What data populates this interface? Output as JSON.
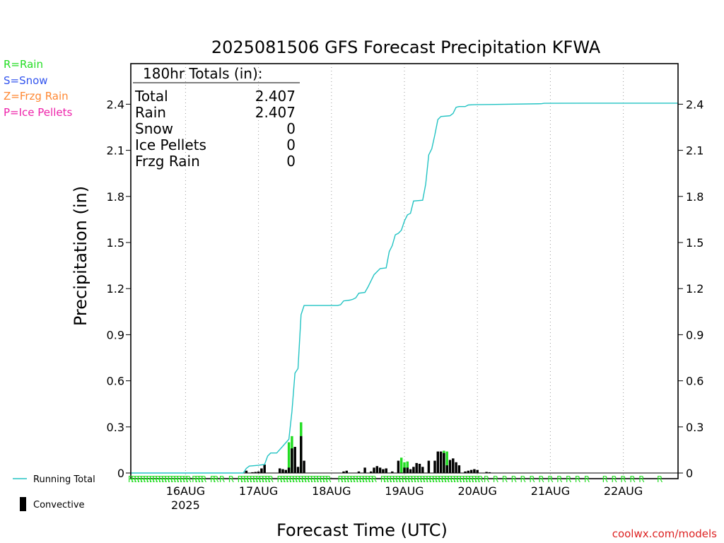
{
  "title": "2025081506 GFS Forecast Precipitation KFWA",
  "ylabel": "Precipitation (in)",
  "xlabel": "Forecast Time (UTC)",
  "watermark": "coolwx.com/models",
  "ptype_legend": [
    {
      "label": "R=Rain",
      "color": "#22dd22"
    },
    {
      "label": "S=Snow",
      "color": "#3355ee"
    },
    {
      "label": "Z=Frzg Rain",
      "color": "#ff8833"
    },
    {
      "label": "P=Ice Pellets",
      "color": "#ee22aa"
    }
  ],
  "series_legend": {
    "running_total": {
      "label": "Running Total",
      "color": "#22c3c3"
    },
    "convective": {
      "label": "Convective",
      "color": "#000000"
    }
  },
  "totals": {
    "header": "180hr Totals (in):",
    "rows": [
      {
        "label": "Total",
        "value": "2.407"
      },
      {
        "label": "Rain",
        "value": "2.407"
      },
      {
        "label": "Snow",
        "value": "0"
      },
      {
        "label": "Ice Pellets",
        "value": "0"
      },
      {
        "label": "Frzg Rain",
        "value": "0"
      }
    ]
  },
  "chart_data": {
    "type": "bar",
    "title": "2025081506 GFS Forecast Precipitation KFWA",
    "xlabel": "Forecast Time (UTC)",
    "ylabel": "Precipitation (in)",
    "x_units": "forecast hour from 2025-08-15 06Z",
    "xlim": [
      0,
      180
    ],
    "ylim": [
      0,
      2.6
    ],
    "yticks": [
      0,
      0.3,
      0.6,
      0.9,
      1.2,
      1.5,
      1.8,
      2.1,
      2.4
    ],
    "ytick_labels": [
      "0",
      "0.3",
      "0.6",
      "0.9",
      "1.2",
      "1.5",
      "1.8",
      "2.1",
      "2.4"
    ],
    "xticks": [
      {
        "x": 18,
        "label": "16AUG",
        "sublabel": "2025"
      },
      {
        "x": 42,
        "label": "17AUG"
      },
      {
        "x": 66,
        "label": "18AUG"
      },
      {
        "x": 90,
        "label": "19AUG"
      },
      {
        "x": 114,
        "label": "20AUG"
      },
      {
        "x": 138,
        "label": "21AUG"
      },
      {
        "x": 162,
        "label": "22AUG"
      }
    ],
    "grid": "vertical dotted at day boundaries",
    "series": [
      {
        "name": "Running Total",
        "kind": "line",
        "color": "#22c3c3",
        "points": [
          [
            0,
            0
          ],
          [
            37,
            0
          ],
          [
            38,
            0.03
          ],
          [
            39,
            0.045
          ],
          [
            42,
            0.05
          ],
          [
            44,
            0.055
          ],
          [
            45,
            0.11
          ],
          [
            46,
            0.13
          ],
          [
            48,
            0.13
          ],
          [
            50,
            0.175
          ],
          [
            52,
            0.22
          ],
          [
            53,
            0.4
          ],
          [
            54,
            0.65
          ],
          [
            55,
            0.68
          ],
          [
            56,
            1.03
          ],
          [
            57,
            1.09
          ],
          [
            68,
            1.09
          ],
          [
            69,
            1.095
          ],
          [
            70,
            1.12
          ],
          [
            72,
            1.125
          ],
          [
            73,
            1.13
          ],
          [
            74,
            1.14
          ],
          [
            75,
            1.17
          ],
          [
            77,
            1.175
          ],
          [
            78,
            1.21
          ],
          [
            79,
            1.25
          ],
          [
            80,
            1.29
          ],
          [
            81,
            1.31
          ],
          [
            82,
            1.33
          ],
          [
            84,
            1.335
          ],
          [
            85,
            1.44
          ],
          [
            86,
            1.48
          ],
          [
            87,
            1.55
          ],
          [
            88,
            1.56
          ],
          [
            89,
            1.58
          ],
          [
            90,
            1.64
          ],
          [
            91,
            1.68
          ],
          [
            92,
            1.69
          ],
          [
            93,
            1.77
          ],
          [
            96,
            1.775
          ],
          [
            97,
            1.88
          ],
          [
            98,
            2.07
          ],
          [
            99,
            2.11
          ],
          [
            100,
            2.2
          ],
          [
            101,
            2.3
          ],
          [
            102,
            2.32
          ],
          [
            105,
            2.325
          ],
          [
            106,
            2.34
          ],
          [
            107,
            2.38
          ],
          [
            108,
            2.385
          ],
          [
            110,
            2.385
          ],
          [
            111,
            2.395
          ],
          [
            113,
            2.397
          ],
          [
            118,
            2.398
          ],
          [
            135,
            2.403
          ],
          [
            136,
            2.406
          ],
          [
            150,
            2.407
          ],
          [
            180,
            2.407
          ]
        ]
      },
      {
        "name": "Rain",
        "kind": "bar",
        "color": "#22dd22",
        "points": [
          [
            52,
            0.2
          ],
          [
            53,
            0.24
          ],
          [
            56,
            0.33
          ],
          [
            89,
            0.1
          ],
          [
            90,
            0.07
          ],
          [
            91,
            0.075
          ],
          [
            103,
            0.145
          ],
          [
            104,
            0.14
          ]
        ]
      },
      {
        "name": "Convective",
        "kind": "bar",
        "color": "#000000",
        "points": [
          [
            38,
            0.015
          ],
          [
            40,
            0.005
          ],
          [
            41,
            0.007
          ],
          [
            42,
            0.01
          ],
          [
            43,
            0.03
          ],
          [
            44,
            0.055
          ],
          [
            49,
            0.03
          ],
          [
            50,
            0.025
          ],
          [
            51,
            0.02
          ],
          [
            52,
            0.035
          ],
          [
            53,
            0.16
          ],
          [
            54,
            0.17
          ],
          [
            55,
            0.04
          ],
          [
            56,
            0.24
          ],
          [
            57,
            0.08
          ],
          [
            70,
            0.01
          ],
          [
            71,
            0.015
          ],
          [
            75,
            0.01
          ],
          [
            77,
            0.035
          ],
          [
            79,
            0.01
          ],
          [
            80,
            0.035
          ],
          [
            81,
            0.045
          ],
          [
            82,
            0.035
          ],
          [
            83,
            0.025
          ],
          [
            84,
            0.03
          ],
          [
            86,
            0.01
          ],
          [
            88,
            0.08
          ],
          [
            90,
            0.035
          ],
          [
            91,
            0.035
          ],
          [
            92,
            0.025
          ],
          [
            93,
            0.04
          ],
          [
            94,
            0.065
          ],
          [
            95,
            0.06
          ],
          [
            96,
            0.04
          ],
          [
            98,
            0.08
          ],
          [
            100,
            0.08
          ],
          [
            101,
            0.14
          ],
          [
            102,
            0.14
          ],
          [
            103,
            0.13
          ],
          [
            104,
            0.05
          ],
          [
            105,
            0.085
          ],
          [
            106,
            0.095
          ],
          [
            107,
            0.07
          ],
          [
            108,
            0.05
          ],
          [
            110,
            0.01
          ],
          [
            111,
            0.015
          ],
          [
            112,
            0.02
          ],
          [
            113,
            0.025
          ],
          [
            114,
            0.02
          ],
          [
            117,
            0.007
          ],
          [
            118,
            0.005
          ]
        ]
      }
    ],
    "ptype_marks": {
      "symbol": "R",
      "color": "#22dd22",
      "hours": [
        0,
        1,
        2,
        3,
        4,
        5,
        6,
        7,
        8,
        9,
        10,
        11,
        12,
        13,
        14,
        15,
        16,
        17,
        18,
        19,
        21,
        22,
        23,
        24,
        27,
        28,
        30,
        33,
        36,
        37,
        38,
        39,
        40,
        41,
        42,
        43,
        44,
        45,
        46,
        49,
        50,
        51,
        52,
        53,
        54,
        55,
        56,
        57,
        58,
        59,
        60,
        61,
        62,
        63,
        64,
        65,
        69,
        70,
        71,
        72,
        73,
        74,
        75,
        76,
        77,
        78,
        79,
        80,
        83,
        84,
        85,
        86,
        87,
        88,
        89,
        90,
        91,
        92,
        93,
        94,
        95,
        96,
        97,
        98,
        99,
        100,
        101,
        102,
        103,
        104,
        105,
        106,
        107,
        108,
        109,
        110,
        111,
        112,
        113,
        114,
        115,
        117,
        120,
        123,
        126,
        129,
        132,
        135,
        138,
        141,
        144,
        147,
        150,
        156,
        159,
        162,
        165,
        168,
        174
      ]
    }
  }
}
